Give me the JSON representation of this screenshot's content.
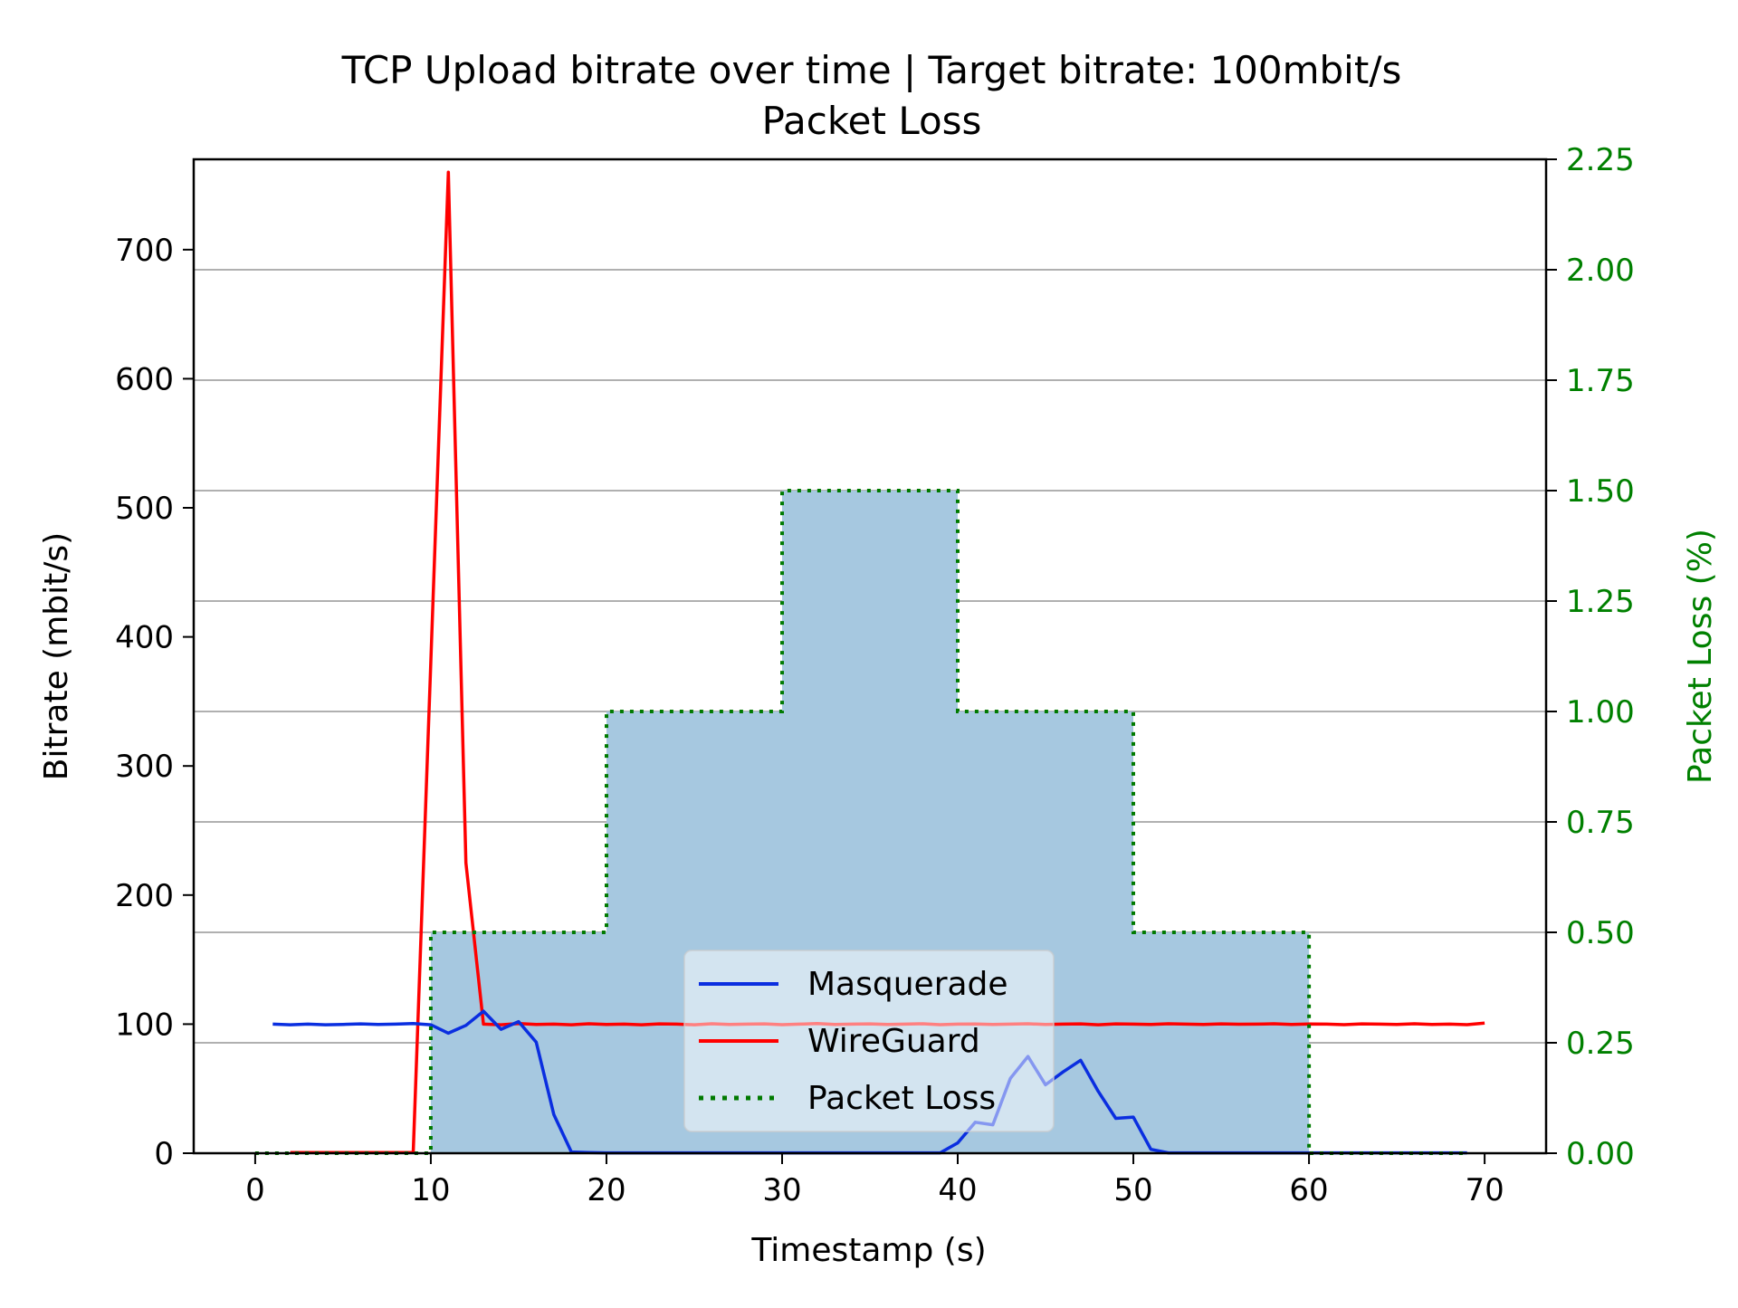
{
  "chart_data": {
    "type": "line",
    "title": "TCP Upload bitrate over time | Target bitrate: 100mbit/s",
    "subtitle": "Packet Loss",
    "xlabel": "Timestamp (s)",
    "ylabel": "Bitrate (mbit/s)",
    "y2label": "Packet Loss (%)",
    "xlim": [
      -3.5,
      73.5
    ],
    "ylim": [
      0,
      770
    ],
    "y2lim": [
      0,
      2.25
    ],
    "x_ticks": [
      0,
      10,
      20,
      30,
      40,
      50,
      60,
      70
    ],
    "x_tick_labels": [
      "0",
      "10",
      "20",
      "30",
      "40",
      "50",
      "60",
      "70"
    ],
    "y_ticks": [
      0,
      100,
      200,
      300,
      400,
      500,
      600,
      700
    ],
    "y_tick_labels": [
      "0",
      "100",
      "200",
      "300",
      "400",
      "500",
      "600",
      "700"
    ],
    "y2_ticks": [
      0,
      0.25,
      0.5,
      0.75,
      1.0,
      1.25,
      1.5,
      1.75,
      2.0,
      2.25
    ],
    "y2_tick_labels": [
      "0.00",
      "0.25",
      "0.50",
      "0.75",
      "1.00",
      "1.25",
      "1.50",
      "1.75",
      "2.00",
      "2.25"
    ],
    "grid": "horizontal lines at secondary-axis ticks",
    "legend_position": "lower-center",
    "colors": {
      "masquerade": "#0a2ee0",
      "wireguard": "#ff0000",
      "packet_loss_line": "#007a00",
      "packet_loss_fill": "#a6c8e0",
      "secondary_axis": "#008000",
      "grid": "#b0b0b0"
    },
    "series": [
      {
        "name": "Masquerade",
        "axis": "left",
        "x": [
          1,
          2,
          3,
          4,
          5,
          6,
          7,
          8,
          9,
          10,
          11,
          12,
          13,
          14,
          15,
          16,
          17,
          18,
          19,
          20,
          21,
          22,
          23,
          24,
          25,
          26,
          27,
          28,
          29,
          30,
          31,
          32,
          33,
          34,
          35,
          36,
          37,
          38,
          39,
          40,
          41,
          42,
          43,
          44,
          45,
          46,
          47,
          48,
          49,
          50,
          51,
          52,
          53,
          54,
          55,
          56,
          57,
          58,
          59,
          60,
          61,
          62,
          63,
          64,
          65,
          66,
          67,
          68,
          69
        ],
        "values": [
          100,
          99.5,
          100,
          99.5,
          99.8,
          100.2,
          99.7,
          100,
          100.5,
          99.5,
          93,
          99,
          110,
          96,
          102,
          86,
          30,
          1,
          0.5,
          0.3,
          0.3,
          0.3,
          0.3,
          0.3,
          0.3,
          0.3,
          0.3,
          0.3,
          0.3,
          0.3,
          0.3,
          0.3,
          0.3,
          0.3,
          0.3,
          0.3,
          0.3,
          0.3,
          0.3,
          8,
          24,
          22,
          58,
          75,
          53,
          63,
          72,
          48,
          27,
          28,
          3,
          0.3,
          0.3,
          0.3,
          0.3,
          0.3,
          0.3,
          0.3,
          0.3,
          0.3,
          0.3,
          0.3,
          0.3,
          0.3,
          0.3,
          0.3,
          0.3,
          0.3,
          0.3
        ]
      },
      {
        "name": "WireGuard",
        "axis": "left",
        "x": [
          2,
          3,
          4,
          5,
          6,
          7,
          8,
          9,
          10,
          11,
          12,
          13,
          14,
          15,
          16,
          17,
          18,
          19,
          20,
          21,
          22,
          23,
          24,
          25,
          26,
          27,
          28,
          29,
          30,
          31,
          32,
          33,
          34,
          35,
          36,
          37,
          38,
          39,
          40,
          41,
          42,
          43,
          44,
          45,
          46,
          47,
          48,
          49,
          50,
          51,
          52,
          53,
          54,
          55,
          56,
          57,
          58,
          59,
          60,
          61,
          62,
          63,
          64,
          65,
          66,
          67,
          68,
          69,
          70
        ],
        "values": [
          0.5,
          0.5,
          0.5,
          0.5,
          0.5,
          0.5,
          0.5,
          0.5,
          380,
          760,
          225,
          100,
          99.5,
          100.5,
          99.8,
          100,
          99.5,
          100.3,
          99.8,
          100,
          99.5,
          100.2,
          100,
          99.5,
          100.3,
          99.8,
          100,
          100.2,
          99.6,
          100,
          100.4,
          99.7,
          100,
          100.2,
          99.8,
          100,
          100.3,
          99.6,
          100,
          100.1,
          99.8,
          100,
          100.3,
          99.7,
          100,
          100.2,
          99.5,
          100.2,
          100,
          99.8,
          100.3,
          100,
          99.7,
          100.2,
          99.9,
          100,
          100.3,
          99.7,
          100.1,
          100,
          99.6,
          100.2,
          100,
          99.8,
          100.3,
          99.8,
          100,
          99.6,
          100.8
        ]
      },
      {
        "name": "Packet Loss",
        "axis": "right",
        "style": "dotted step, filled",
        "x": [
          0,
          10,
          20,
          30,
          40,
          50,
          60,
          69
        ],
        "values": [
          0,
          0.5,
          1.0,
          1.5,
          1.0,
          0.5,
          0,
          0
        ]
      }
    ]
  }
}
